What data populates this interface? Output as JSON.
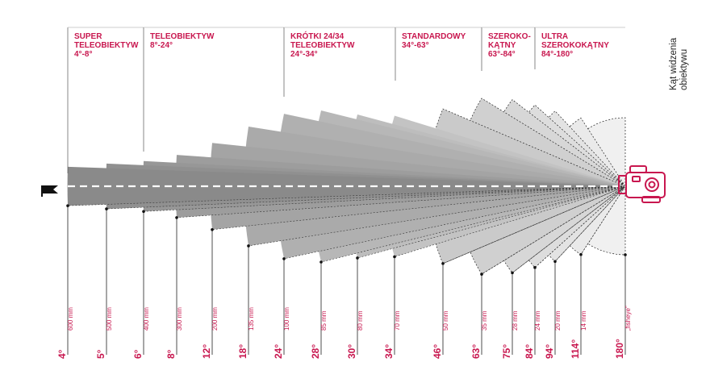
{
  "side_title": [
    "Kąt widzenia",
    "obiektywu"
  ],
  "colors": {
    "accent": "#c8174f",
    "line": "#222222",
    "sector_dark": "#8a8a8a",
    "sector_light": "#f0f0f0"
  },
  "categories": [
    {
      "lines": [
        "SUPER",
        "TELEOBIEKTYW",
        "4°-8°"
      ]
    },
    {
      "lines": [
        "TELEOBIEKTYW",
        "8°-24°"
      ]
    },
    {
      "lines": [
        "KRÓTKI 24/34",
        "TELEOBIEKTYW",
        "24°-34°"
      ]
    },
    {
      "lines": [
        "STANDARDOWY",
        "34°-63°"
      ]
    },
    {
      "lines": [
        "SZEROKO-",
        "KĄTNY",
        "63°-84°"
      ]
    },
    {
      "lines": [
        "ULTRA",
        "SZEROKOKĄTNY",
        "84°-180°"
      ]
    }
  ],
  "lenses": [
    {
      "angle": "4°",
      "angle_deg": 4,
      "focal": "600 mm"
    },
    {
      "angle": "5°",
      "angle_deg": 5,
      "focal": "500 mm"
    },
    {
      "angle": "6°",
      "angle_deg": 6,
      "focal": "400 mm"
    },
    {
      "angle": "8°",
      "angle_deg": 8,
      "focal": "300 mm"
    },
    {
      "angle": "12°",
      "angle_deg": 12,
      "focal": "200 mm"
    },
    {
      "angle": "18°",
      "angle_deg": 18,
      "focal": "135 mm"
    },
    {
      "angle": "24°",
      "angle_deg": 24,
      "focal": "100 mm"
    },
    {
      "angle": "28°",
      "angle_deg": 28,
      "focal": "85 mm"
    },
    {
      "angle": "30°",
      "angle_deg": 30,
      "focal": "80 mm"
    },
    {
      "angle": "34°",
      "angle_deg": 34,
      "focal": "70 mm"
    },
    {
      "angle": "46°",
      "angle_deg": 46,
      "focal": "50 mm"
    },
    {
      "angle": "63°",
      "angle_deg": 63,
      "focal": "35 mm"
    },
    {
      "angle": "75°",
      "angle_deg": 75,
      "focal": "28 mm"
    },
    {
      "angle": "84°",
      "angle_deg": 84,
      "focal": "24 mm"
    },
    {
      "angle": "94°",
      "angle_deg": 94,
      "focal": "20 mm"
    },
    {
      "angle": "114°",
      "angle_deg": 114,
      "focal": "14 mm"
    },
    {
      "angle": "180°",
      "angle_deg": 180,
      "focal": "„fisheye”"
    }
  ]
}
